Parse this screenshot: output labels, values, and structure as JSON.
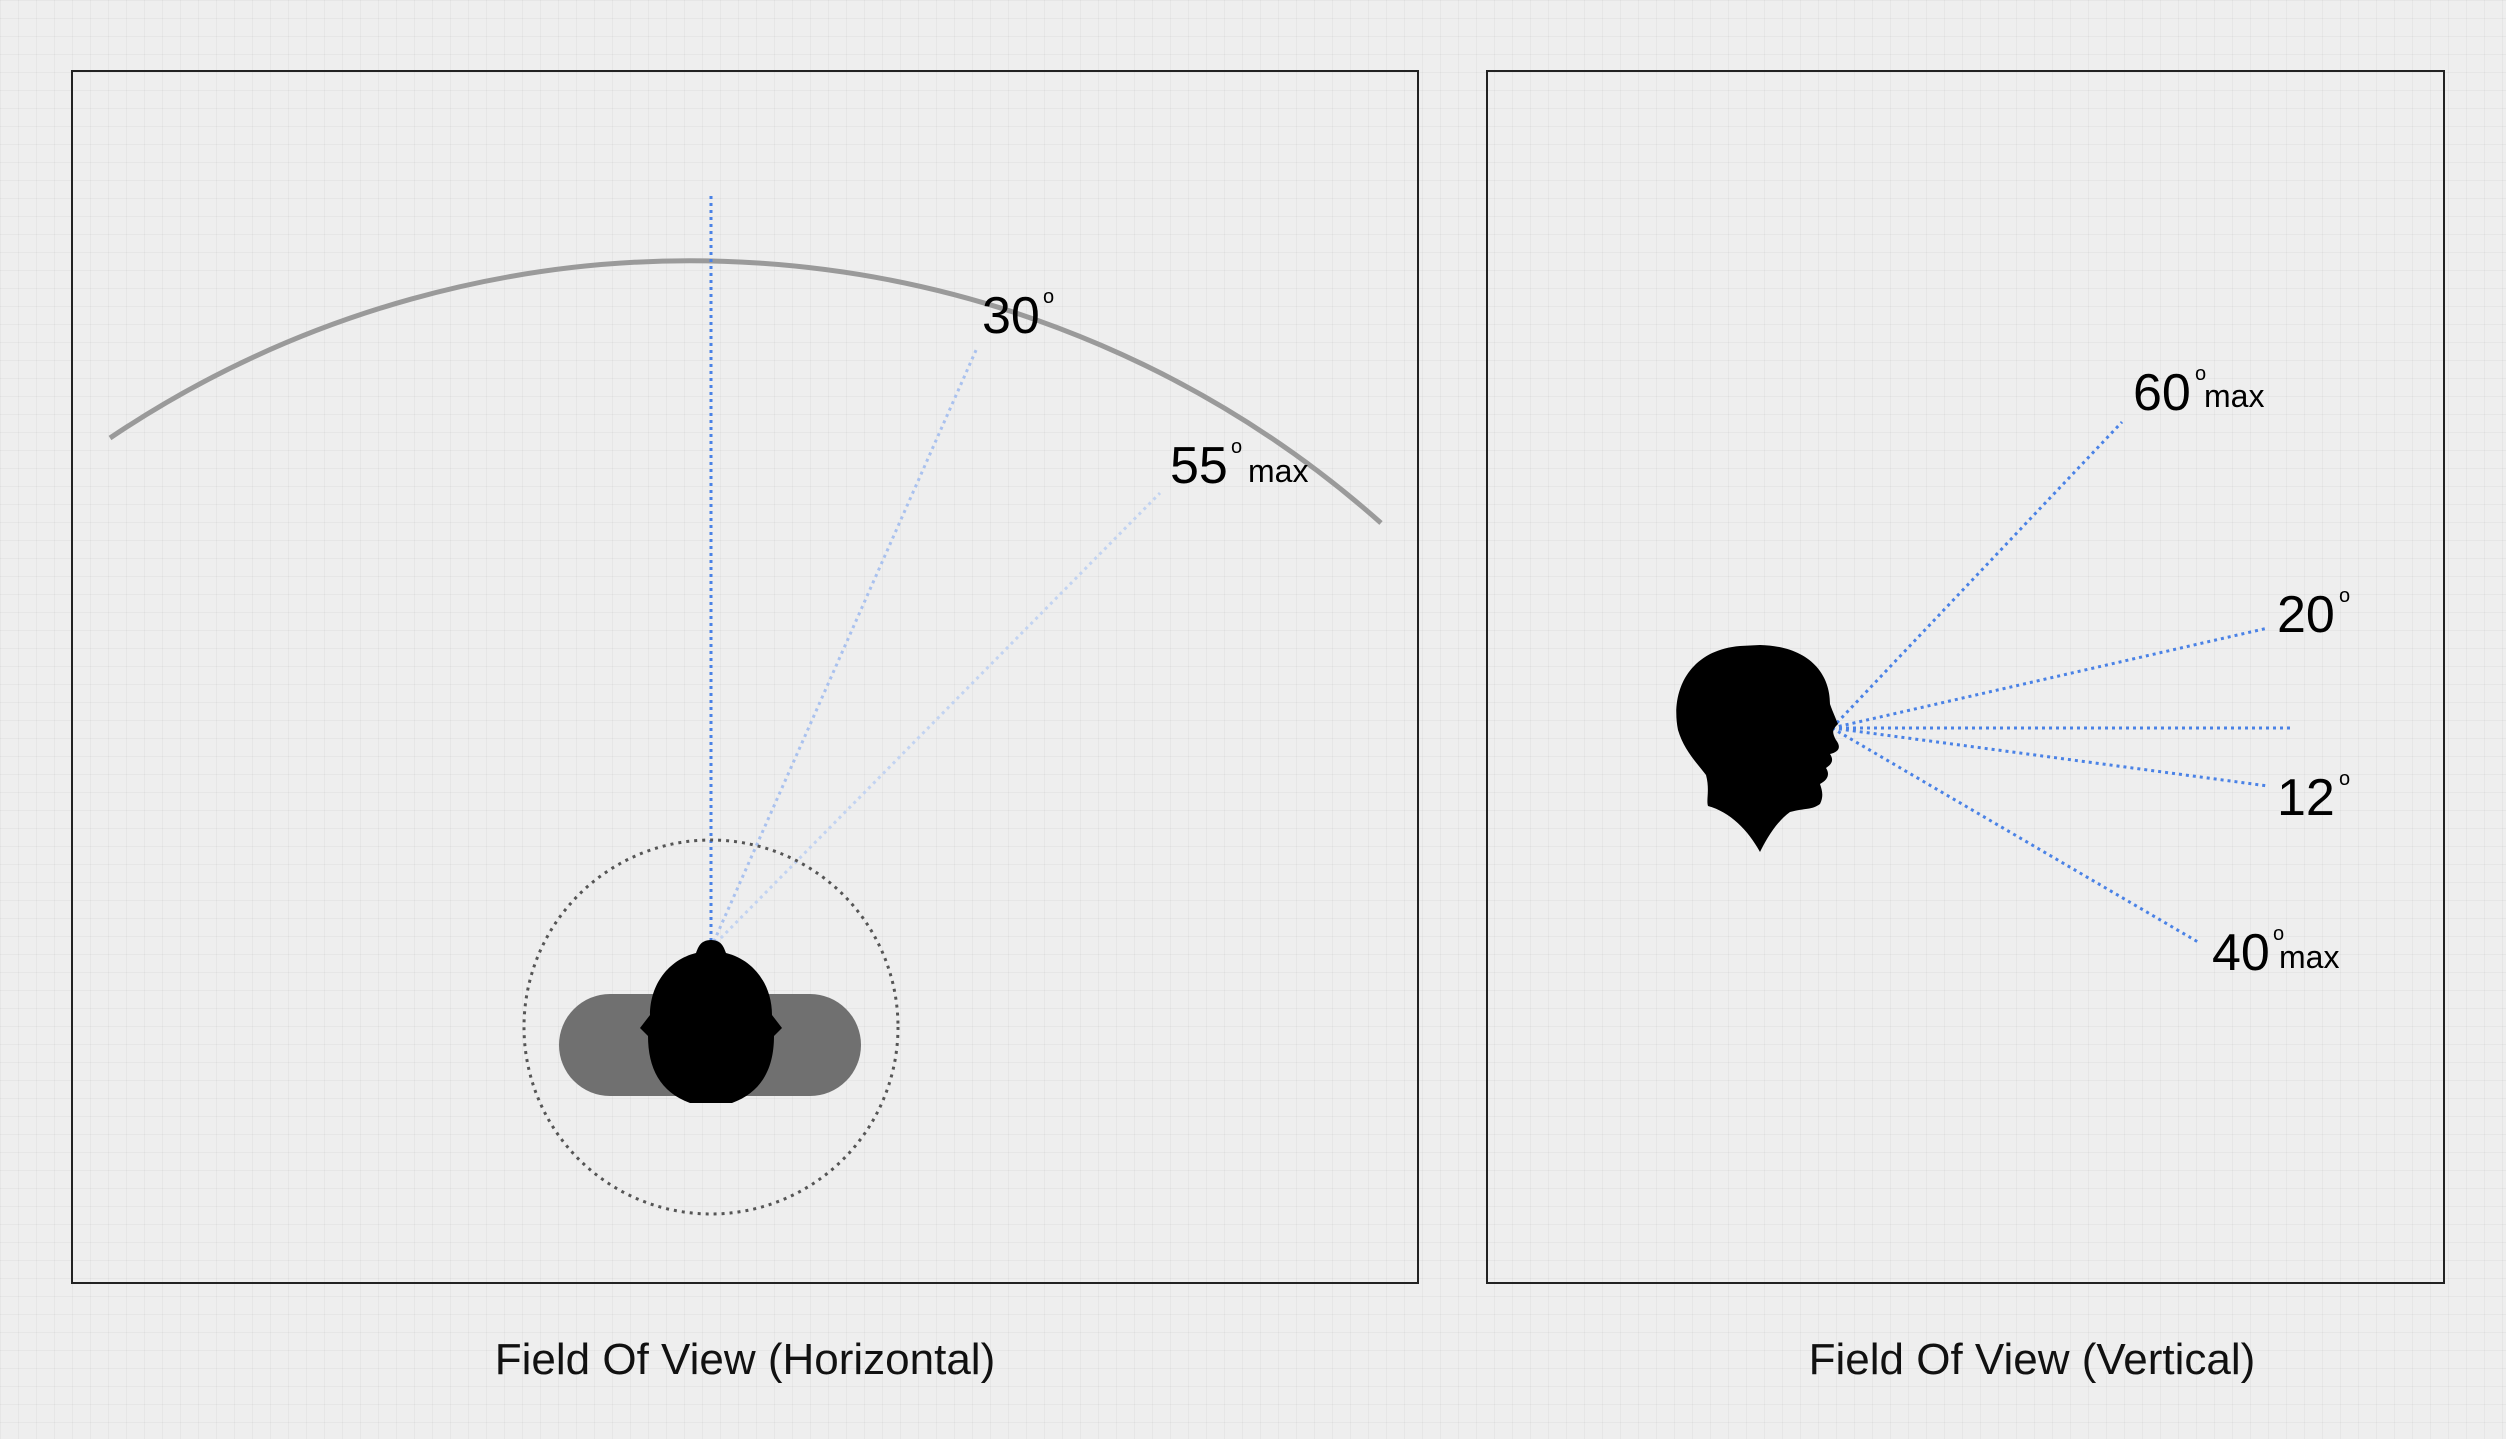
{
  "colors": {
    "background": "#eeeeee",
    "panel_border": "#222222",
    "ray_blue": "#4a82e6",
    "ray_light_blue": "#a9c1ee",
    "arc_gray": "#9a9a9a",
    "shoulder_gray": "#707070",
    "silhouette": "#000000"
  },
  "horizontal": {
    "caption": "Field Of View (Horizontal)",
    "labels": [
      {
        "id": "h30",
        "value": "30",
        "degree": "o",
        "suffix": ""
      },
      {
        "id": "h55",
        "value": "55",
        "degree": "o",
        "suffix": "max"
      }
    ]
  },
  "vertical": {
    "caption": "Field Of View (Vertical)",
    "labels": [
      {
        "id": "v60",
        "value": "60",
        "degree": "o",
        "suffix": "max"
      },
      {
        "id": "v20",
        "value": "20",
        "degree": "o",
        "suffix": ""
      },
      {
        "id": "v12",
        "value": "12",
        "degree": "o",
        "suffix": ""
      },
      {
        "id": "v40",
        "value": "40",
        "degree": "o",
        "suffix": "max"
      }
    ]
  },
  "icons": {
    "top_head": "head-top-view-icon",
    "side_head": "head-profile-icon"
  }
}
